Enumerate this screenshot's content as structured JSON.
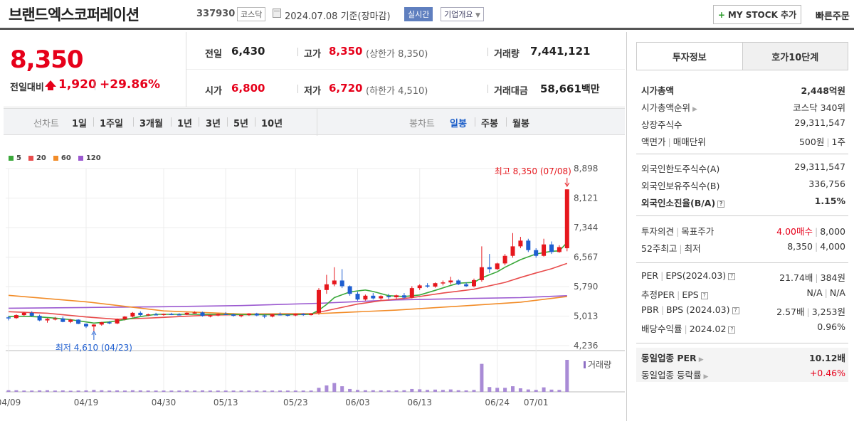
{
  "header": {
    "title": "브랜드엑스코퍼레이션",
    "code": "337930",
    "market": "코스닥",
    "date": "2024.07.08",
    "basis": "기준(장마감)",
    "live": "실시간",
    "overview": "기업개요",
    "mystock": "MY STOCK 추가",
    "quick": "빠른주문"
  },
  "price": {
    "current": "8,350",
    "vs_label": "전일대비",
    "change": "1,920",
    "rate": "+29.86%",
    "prev_label": "전일",
    "prev": "6,430",
    "high_label": "고가",
    "high": "8,350",
    "upper_label": "(상한가 8,350)",
    "volume_label": "거래량",
    "volume": "7,441,121",
    "open_label": "시가",
    "open": "6,800",
    "low_label": "저가",
    "low": "6,720",
    "lower_label": "(하한가 4,510)",
    "amount_label": "거래대금",
    "amount": "58,661",
    "amount_unit": "백만"
  },
  "period": {
    "line_label": "선차트",
    "line_items": [
      "1일",
      "1주일",
      "3개월",
      "1년",
      "3년",
      "5년",
      "10년"
    ],
    "candle_label": "봉차트",
    "candle_items": [
      "일봉",
      "주봉",
      "월봉"
    ]
  },
  "chart": {
    "legend": [
      {
        "name": "5",
        "color": "#3aa83a"
      },
      {
        "name": "20",
        "color": "#e84c4c"
      },
      {
        "name": "60",
        "color": "#f28c28"
      },
      {
        "name": "120",
        "color": "#9b59d0"
      }
    ],
    "high_note": "최고 8,350 (07/08)",
    "low_note": "최저 4,610 (04/23)",
    "volume_label": "거래량",
    "y_ticks": [
      "8,898",
      "8,121",
      "7,344",
      "6,567",
      "5,790",
      "5,013",
      "4,236"
    ],
    "x_ticks": [
      "04/09",
      "04/19",
      "04/30",
      "05/13",
      "05/23",
      "06/03",
      "06/13",
      "06/24",
      "07/01"
    ]
  },
  "chart_data": {
    "type": "candlestick",
    "ylim": [
      4236,
      8898
    ],
    "candles": [
      [
        4980,
        5020,
        4900,
        4960
      ],
      [
        4960,
        5060,
        4940,
        5040
      ],
      [
        5040,
        5120,
        5010,
        5100
      ],
      [
        5100,
        5140,
        5000,
        5020
      ],
      [
        5020,
        5050,
        4880,
        4900
      ],
      [
        4900,
        4960,
        4840,
        4940
      ],
      [
        4940,
        4990,
        4900,
        4950
      ],
      [
        4950,
        5000,
        4850,
        4860
      ],
      [
        4860,
        4940,
        4830,
        4920
      ],
      [
        4920,
        4930,
        4800,
        4810
      ],
      [
        4810,
        4820,
        4700,
        4740
      ],
      [
        4740,
        4800,
        4610,
        4790
      ],
      [
        4790,
        4860,
        4760,
        4850
      ],
      [
        4850,
        4880,
        4800,
        4820
      ],
      [
        4820,
        4950,
        4800,
        4930
      ],
      [
        4930,
        5010,
        4900,
        5000
      ],
      [
        5000,
        5120,
        4980,
        5100
      ],
      [
        5100,
        5140,
        5020,
        5040
      ],
      [
        5040,
        5080,
        5010,
        5060
      ],
      [
        5060,
        5100,
        5040,
        5050
      ],
      [
        5050,
        5080,
        5020,
        5070
      ],
      [
        5070,
        5100,
        5040,
        5060
      ],
      [
        5060,
        5090,
        5030,
        5050
      ],
      [
        5050,
        5110,
        5040,
        5100
      ],
      [
        5100,
        5140,
        5080,
        5110
      ],
      [
        5110,
        5130,
        5000,
        5020
      ],
      [
        5020,
        5050,
        4980,
        5030
      ],
      [
        5030,
        5080,
        5010,
        5070
      ],
      [
        5070,
        5120,
        5040,
        5060
      ],
      [
        5060,
        5080,
        5000,
        5020
      ],
      [
        5020,
        5050,
        4980,
        5040
      ],
      [
        5040,
        5090,
        5020,
        5080
      ],
      [
        5080,
        5100,
        5010,
        5030
      ],
      [
        5030,
        5060,
        4960,
        5000
      ],
      [
        5000,
        5070,
        4980,
        5060
      ],
      [
        5060,
        5110,
        5030,
        5050
      ],
      [
        5050,
        5060,
        5000,
        5030
      ],
      [
        5030,
        5080,
        5010,
        5070
      ],
      [
        5070,
        5090,
        5020,
        5040
      ],
      [
        5040,
        5090,
        5030,
        5080
      ],
      [
        5100,
        5750,
        5050,
        5700
      ],
      [
        5700,
        6100,
        5600,
        5850
      ],
      [
        5850,
        6300,
        5800,
        5950
      ],
      [
        5950,
        6250,
        5750,
        5800
      ],
      [
        5800,
        5820,
        5550,
        5600
      ],
      [
        5600,
        5650,
        5420,
        5450
      ],
      [
        5450,
        5580,
        5420,
        5550
      ],
      [
        5550,
        5620,
        5450,
        5480
      ],
      [
        5480,
        5560,
        5440,
        5540
      ],
      [
        5540,
        5600,
        5460,
        5510
      ],
      [
        5510,
        5580,
        5470,
        5560
      ],
      [
        5560,
        5620,
        5470,
        5500
      ],
      [
        5500,
        5800,
        5480,
        5750
      ],
      [
        5750,
        5850,
        5700,
        5820
      ],
      [
        5820,
        5880,
        5760,
        5790
      ],
      [
        5790,
        5900,
        5760,
        5880
      ],
      [
        5880,
        5950,
        5820,
        5900
      ],
      [
        5900,
        6050,
        5850,
        5950
      ],
      [
        5950,
        5980,
        5830,
        5850
      ],
      [
        5850,
        5900,
        5780,
        5800
      ],
      [
        5800,
        6000,
        5770,
        5960
      ],
      [
        5960,
        6850,
        5920,
        6300
      ],
      [
        6300,
        6650,
        6150,
        6250
      ],
      [
        6250,
        6420,
        6230,
        6400
      ],
      [
        6400,
        6650,
        6350,
        6600
      ],
      [
        6600,
        7200,
        6550,
        6850
      ],
      [
        6850,
        7100,
        6800,
        7000
      ],
      [
        7000,
        7050,
        6700,
        6750
      ],
      [
        6750,
        6800,
        6550,
        6600
      ],
      [
        6600,
        7050,
        6580,
        6900
      ],
      [
        6900,
        6980,
        6650,
        6700
      ],
      [
        6700,
        6880,
        6680,
        6830
      ],
      [
        6800,
        8350,
        6720,
        8350
      ]
    ],
    "ma5": [
      [
        0,
        5000
      ],
      [
        2,
        5010
      ],
      [
        4,
        4990
      ],
      [
        6,
        4960
      ],
      [
        8,
        4920
      ],
      [
        10,
        4860
      ],
      [
        11,
        4830
      ],
      [
        13,
        4860
      ],
      [
        15,
        4920
      ],
      [
        17,
        5000
      ],
      [
        19,
        5060
      ],
      [
        22,
        5060
      ],
      [
        25,
        5060
      ],
      [
        28,
        5060
      ],
      [
        31,
        5050
      ],
      [
        34,
        5050
      ],
      [
        37,
        5050
      ],
      [
        39,
        5060
      ],
      [
        40,
        5170
      ],
      [
        41,
        5320
      ],
      [
        42,
        5500
      ],
      [
        44,
        5650
      ],
      [
        46,
        5700
      ],
      [
        47,
        5660
      ],
      [
        49,
        5550
      ],
      [
        51,
        5530
      ],
      [
        53,
        5570
      ],
      [
        55,
        5690
      ],
      [
        57,
        5820
      ],
      [
        58,
        5880
      ],
      [
        60,
        5900
      ],
      [
        61,
        6020
      ],
      [
        62,
        6100
      ],
      [
        63,
        6180
      ],
      [
        64,
        6300
      ],
      [
        66,
        6500
      ],
      [
        68,
        6650
      ],
      [
        70,
        6720
      ],
      [
        71,
        6730
      ],
      [
        72,
        6950
      ]
    ],
    "ma20": [
      [
        0,
        5130
      ],
      [
        5,
        5090
      ],
      [
        10,
        4990
      ],
      [
        14,
        4930
      ],
      [
        18,
        4960
      ],
      [
        22,
        5000
      ],
      [
        26,
        5040
      ],
      [
        30,
        5050
      ],
      [
        35,
        5060
      ],
      [
        39,
        5070
      ],
      [
        42,
        5200
      ],
      [
        45,
        5330
      ],
      [
        48,
        5420
      ],
      [
        52,
        5500
      ],
      [
        56,
        5620
      ],
      [
        60,
        5720
      ],
      [
        64,
        5900
      ],
      [
        66,
        6030
      ],
      [
        68,
        6150
      ],
      [
        70,
        6260
      ],
      [
        72,
        6400
      ]
    ],
    "ma60": [
      [
        0,
        5560
      ],
      [
        10,
        5390
      ],
      [
        20,
        5150
      ],
      [
        30,
        5070
      ],
      [
        40,
        5080
      ],
      [
        50,
        5170
      ],
      [
        60,
        5300
      ],
      [
        66,
        5380
      ],
      [
        72,
        5530
      ]
    ],
    "ma120": [
      [
        0,
        5220
      ],
      [
        10,
        5240
      ],
      [
        20,
        5260
      ],
      [
        30,
        5290
      ],
      [
        40,
        5350
      ],
      [
        50,
        5440
      ],
      [
        60,
        5480
      ],
      [
        66,
        5500
      ],
      [
        72,
        5550
      ]
    ],
    "volume": [
      10,
      10,
      8,
      8,
      9,
      10,
      8,
      9,
      7,
      8,
      9,
      12,
      10,
      8,
      9,
      8,
      10,
      9,
      8,
      8,
      8,
      8,
      8,
      9,
      8,
      9,
      8,
      8,
      8,
      8,
      8,
      8,
      8,
      8,
      8,
      8,
      8,
      8,
      8,
      8,
      25,
      40,
      55,
      35,
      18,
      12,
      10,
      10,
      9,
      9,
      9,
      10,
      18,
      16,
      12,
      14,
      12,
      15,
      10,
      9,
      12,
      175,
      30,
      25,
      25,
      35,
      22,
      15,
      12,
      28,
      14,
      12,
      200
    ],
    "x_tick_index": [
      0,
      10,
      20,
      28,
      37,
      45,
      53,
      63,
      68
    ]
  },
  "right": {
    "tabs": [
      "투자정보",
      "호가10단계"
    ],
    "group1": [
      {
        "k": "시가총액",
        "v": "2,448억원",
        "bold": true
      },
      {
        "k": "시가총액순위",
        "v": "코스닥 340위",
        "caret": true
      },
      {
        "k": "상장주식수",
        "v": "29,311,547"
      },
      {
        "k": "액면가",
        "k2": "매매단위",
        "v": "500원",
        "v2": "1주"
      }
    ],
    "group2": [
      {
        "k": "외국인한도주식수(A)",
        "v": "29,311,547"
      },
      {
        "k": "외국인보유주식수(B)",
        "v": "336,756"
      },
      {
        "k": "외국인소진율(B/A)",
        "v": "1.15%",
        "bold": true,
        "q": true
      }
    ],
    "group3": [
      {
        "k": "투자의견",
        "k2": "목표주가",
        "v": "4.00매수",
        "v2": "8,000",
        "red": true
      },
      {
        "k": "52주최고",
        "k2": "최저",
        "v": "8,350",
        "v2": "4,000"
      }
    ],
    "group4": [
      {
        "k": "PER",
        "k2": "EPS(2024.03)",
        "v": "21.74배",
        "v2": "384원",
        "q": true
      },
      {
        "k": "추정PER",
        "k2": "EPS",
        "v": "N/A",
        "v2": "N/A",
        "q": true
      },
      {
        "k": "PBR",
        "k2": "BPS (2024.03)",
        "v": "2.57배",
        "v2": "3,253원",
        "q": true
      },
      {
        "k": "배당수익률",
        "k2": "2024.02",
        "v": "0.96%",
        "q": true
      }
    ],
    "group5": [
      {
        "k": "동일업종 PER",
        "v": "10.12배",
        "bold": true,
        "caret": true
      },
      {
        "k": "동일업종 등락률",
        "v": "+0.46%",
        "red": true,
        "caret": true
      }
    ]
  }
}
